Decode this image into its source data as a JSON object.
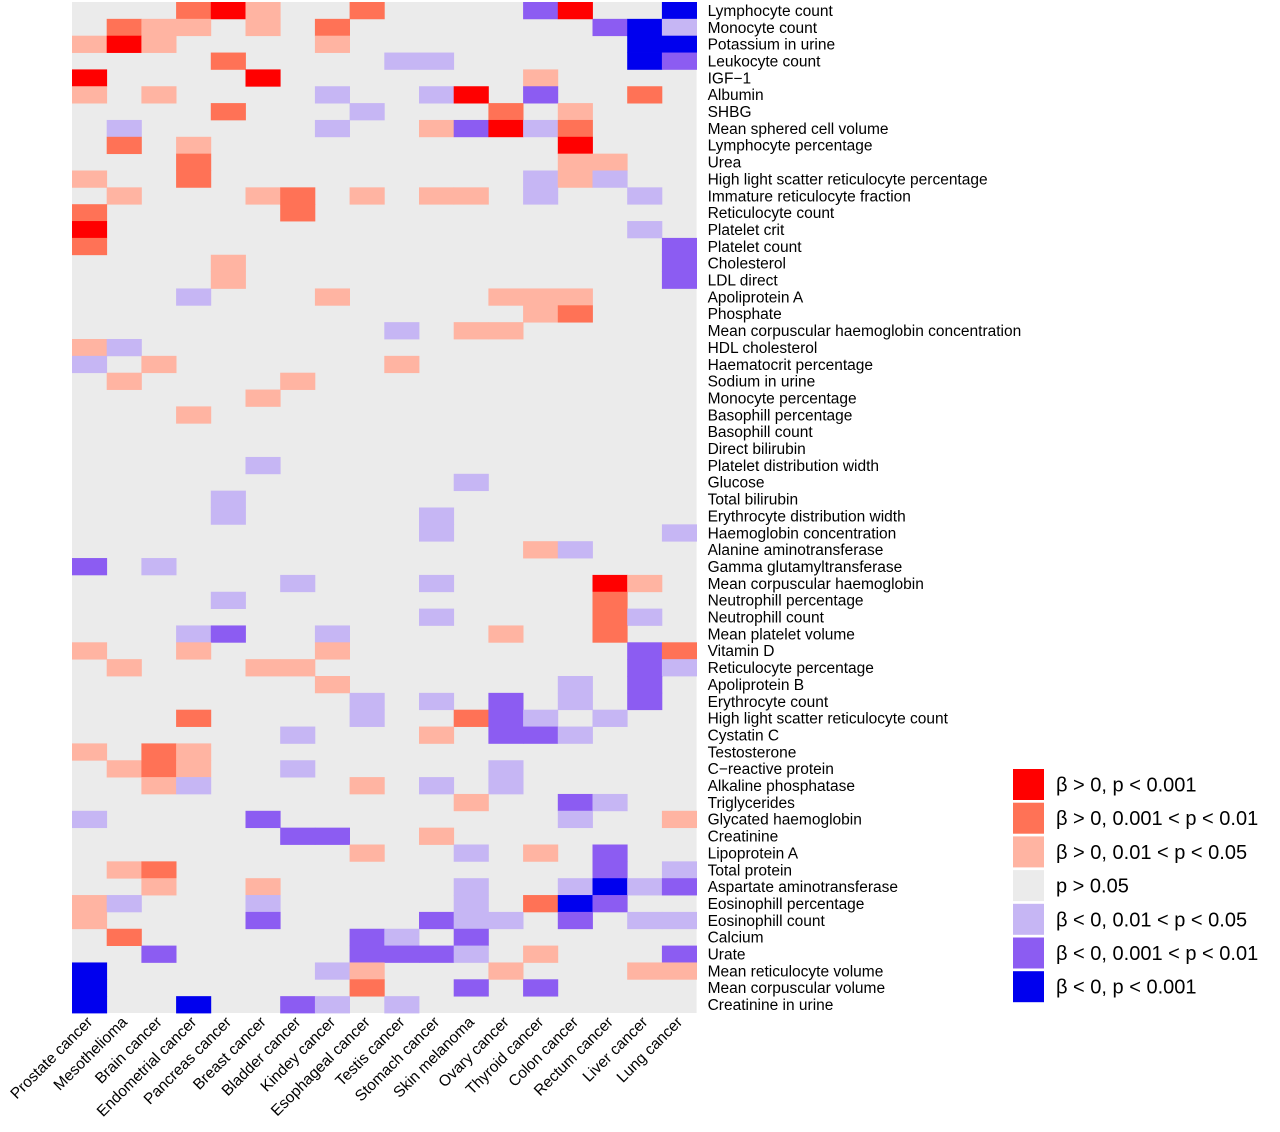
{
  "chart_data": {
    "type": "heatmap",
    "title": "",
    "xlabel": "",
    "ylabel": "",
    "columns": [
      "Prostate cancer",
      "Mesothelioma",
      "Brain cancer",
      "Endometrial cancer",
      "Pancreas cancer",
      "Breast cancer",
      "Bladder cancer",
      "Kindey cancer",
      "Esophageal cancer",
      "Testis cancer",
      "Stomach cancer",
      "Skin melanoma",
      "Ovary cancer",
      "Thyroid cancer",
      "Colon cancer",
      "Rectum cancer",
      "Liver cancer",
      "Lung cancer"
    ],
    "rows": [
      "Lymphocyte count",
      "Monocyte count",
      "Potassium in urine",
      "Leukocyte count",
      "IGF−1",
      "Albumin",
      "SHBG",
      "Mean sphered cell volume",
      "Lymphocyte percentage",
      "Urea",
      "High light scatter reticulocyte percentage",
      "Immature reticulocyte fraction",
      "Reticulocyte count",
      "Platelet crit",
      "Platelet count",
      "Cholesterol",
      "LDL direct",
      "Apoliprotein A",
      "Phosphate",
      "Mean corpuscular haemoglobin concentration",
      "HDL cholesterol",
      "Haematocrit percentage",
      "Sodium in urine",
      "Monocyte percentage",
      "Basophill percentage",
      "Basophill count",
      "Direct bilirubin",
      "Platelet distribution width",
      "Glucose",
      "Total bilirubin",
      "Erythrocyte distribution width",
      "Haemoglobin concentration",
      "Alanine aminotransferase",
      "Gamma glutamyltransferase",
      "Mean corpuscular haemoglobin",
      "Neutrophill percentage",
      "Neutrophill count",
      "Mean platelet volume",
      "Vitamin D",
      "Reticulocyte percentage",
      "Apoliprotein B",
      "Erythrocyte count",
      "High light scatter reticulocyte count",
      "Cystatin C",
      "Testosterone",
      "C−reactive protein",
      "Alkaline phosphatase",
      "Triglycerides",
      "Glycated haemoglobin",
      "Creatinine",
      "Lipoprotein A",
      "Total protein",
      "Aspartate aminotransferase",
      "Eosinophill percentage",
      "Eosinophill count",
      "Calcium",
      "Urate",
      "Mean reticulocyte volume",
      "Mean corpuscular volume",
      "Creatinine in urine"
    ],
    "categories": [
      {
        "code": 3,
        "label": "β > 0, p < 0.001",
        "color": "#ff0000"
      },
      {
        "code": 2,
        "label": "β > 0, 0.001 < p < 0.01",
        "color": "#ff7256"
      },
      {
        "code": 1,
        "label": "β > 0, 0.01 < p < 0.05",
        "color": "#ffb4a2"
      },
      {
        "code": 0,
        "label": "p > 0.05",
        "color": "#ebebeb"
      },
      {
        "code": -1,
        "label": "β < 0, 0.01 < p < 0.05",
        "color": "#c6b6f4"
      },
      {
        "code": -2,
        "label": "β < 0, 0.001 < p < 0.01",
        "color": "#8c5cf2"
      },
      {
        "code": -3,
        "label": "β < 0, p < 0.001",
        "color": "#0000ee"
      }
    ],
    "values": [
      [
        0,
        0,
        0,
        2,
        3,
        1,
        0,
        0,
        2,
        0,
        0,
        0,
        0,
        -2,
        3,
        0,
        0,
        -3
      ],
      [
        0,
        2,
        1,
        1,
        0,
        1,
        0,
        2,
        0,
        0,
        0,
        0,
        0,
        0,
        0,
        -2,
        -3,
        -1
      ],
      [
        1,
        3,
        1,
        0,
        0,
        0,
        0,
        1,
        0,
        0,
        0,
        0,
        0,
        0,
        0,
        0,
        -3,
        -3
      ],
      [
        0,
        0,
        0,
        0,
        2,
        0,
        0,
        0,
        0,
        -1,
        -1,
        0,
        0,
        0,
        0,
        0,
        -3,
        -2
      ],
      [
        3,
        0,
        0,
        0,
        0,
        3,
        0,
        0,
        0,
        0,
        0,
        0,
        0,
        1,
        0,
        0,
        0,
        0
      ],
      [
        1,
        0,
        1,
        0,
        0,
        0,
        0,
        -1,
        0,
        0,
        -1,
        3,
        0,
        -2,
        0,
        0,
        2,
        0
      ],
      [
        0,
        0,
        0,
        0,
        2,
        0,
        0,
        0,
        -1,
        0,
        0,
        0,
        2,
        0,
        1,
        0,
        0,
        0
      ],
      [
        0,
        -1,
        0,
        0,
        0,
        0,
        0,
        -1,
        0,
        0,
        1,
        -2,
        3,
        -1,
        2,
        0,
        0,
        0
      ],
      [
        0,
        2,
        0,
        1,
        0,
        0,
        0,
        0,
        0,
        0,
        0,
        0,
        0,
        0,
        3,
        0,
        0,
        0
      ],
      [
        0,
        0,
        0,
        2,
        0,
        0,
        0,
        0,
        0,
        0,
        0,
        0,
        0,
        0,
        1,
        1,
        0,
        0
      ],
      [
        1,
        0,
        0,
        2,
        0,
        0,
        0,
        0,
        0,
        0,
        0,
        0,
        0,
        -1,
        1,
        -1,
        0,
        0
      ],
      [
        0,
        1,
        0,
        0,
        0,
        1,
        2,
        0,
        1,
        0,
        1,
        1,
        0,
        -1,
        0,
        0,
        -1,
        0
      ],
      [
        2,
        0,
        0,
        0,
        0,
        0,
        2,
        0,
        0,
        0,
        0,
        0,
        0,
        0,
        0,
        0,
        0,
        0
      ],
      [
        3,
        0,
        0,
        0,
        0,
        0,
        0,
        0,
        0,
        0,
        0,
        0,
        0,
        0,
        0,
        0,
        -1,
        0
      ],
      [
        2,
        0,
        0,
        0,
        0,
        0,
        0,
        0,
        0,
        0,
        0,
        0,
        0,
        0,
        0,
        0,
        0,
        -2
      ],
      [
        0,
        0,
        0,
        0,
        1,
        0,
        0,
        0,
        0,
        0,
        0,
        0,
        0,
        0,
        0,
        0,
        0,
        -2
      ],
      [
        0,
        0,
        0,
        0,
        1,
        0,
        0,
        0,
        0,
        0,
        0,
        0,
        0,
        0,
        0,
        0,
        0,
        -2
      ],
      [
        0,
        0,
        0,
        -1,
        0,
        0,
        0,
        1,
        0,
        0,
        0,
        0,
        1,
        1,
        1,
        0,
        0,
        0
      ],
      [
        0,
        0,
        0,
        0,
        0,
        0,
        0,
        0,
        0,
        0,
        0,
        0,
        0,
        1,
        2,
        0,
        0,
        0
      ],
      [
        0,
        0,
        0,
        0,
        0,
        0,
        0,
        0,
        0,
        -1,
        0,
        1,
        1,
        0,
        0,
        0,
        0,
        0
      ],
      [
        1,
        -1,
        0,
        0,
        0,
        0,
        0,
        0,
        0,
        0,
        0,
        0,
        0,
        0,
        0,
        0,
        0,
        0
      ],
      [
        -1,
        0,
        1,
        0,
        0,
        0,
        0,
        0,
        0,
        1,
        0,
        0,
        0,
        0,
        0,
        0,
        0,
        0
      ],
      [
        0,
        1,
        0,
        0,
        0,
        0,
        1,
        0,
        0,
        0,
        0,
        0,
        0,
        0,
        0,
        0,
        0,
        0
      ],
      [
        0,
        0,
        0,
        0,
        0,
        1,
        0,
        0,
        0,
        0,
        0,
        0,
        0,
        0,
        0,
        0,
        0,
        0
      ],
      [
        0,
        0,
        0,
        1,
        0,
        0,
        0,
        0,
        0,
        0,
        0,
        0,
        0,
        0,
        0,
        0,
        0,
        0
      ],
      [
        0,
        0,
        0,
        0,
        0,
        0,
        0,
        0,
        0,
        0,
        0,
        0,
        0,
        0,
        0,
        0,
        0,
        0
      ],
      [
        0,
        0,
        0,
        0,
        0,
        0,
        0,
        0,
        0,
        0,
        0,
        0,
        0,
        0,
        0,
        0,
        0,
        0
      ],
      [
        0,
        0,
        0,
        0,
        0,
        -1,
        0,
        0,
        0,
        0,
        0,
        0,
        0,
        0,
        0,
        0,
        0,
        0
      ],
      [
        0,
        0,
        0,
        0,
        0,
        0,
        0,
        0,
        0,
        0,
        0,
        -1,
        0,
        0,
        0,
        0,
        0,
        0
      ],
      [
        0,
        0,
        0,
        0,
        -1,
        0,
        0,
        0,
        0,
        0,
        0,
        0,
        0,
        0,
        0,
        0,
        0,
        0
      ],
      [
        0,
        0,
        0,
        0,
        -1,
        0,
        0,
        0,
        0,
        0,
        -1,
        0,
        0,
        0,
        0,
        0,
        0,
        0
      ],
      [
        0,
        0,
        0,
        0,
        0,
        0,
        0,
        0,
        0,
        0,
        -1,
        0,
        0,
        0,
        0,
        0,
        0,
        -1
      ],
      [
        0,
        0,
        0,
        0,
        0,
        0,
        0,
        0,
        0,
        0,
        0,
        0,
        0,
        1,
        -1,
        0,
        0,
        0
      ],
      [
        -2,
        0,
        -1,
        0,
        0,
        0,
        0,
        0,
        0,
        0,
        0,
        0,
        0,
        0,
        0,
        0,
        0,
        0
      ],
      [
        0,
        0,
        0,
        0,
        0,
        0,
        -1,
        0,
        0,
        0,
        -1,
        0,
        0,
        0,
        0,
        3,
        1,
        0
      ],
      [
        0,
        0,
        0,
        0,
        -1,
        0,
        0,
        0,
        0,
        0,
        0,
        0,
        0,
        0,
        0,
        2,
        0,
        0
      ],
      [
        0,
        0,
        0,
        0,
        0,
        0,
        0,
        0,
        0,
        0,
        -1,
        0,
        0,
        0,
        0,
        2,
        -1,
        0
      ],
      [
        0,
        0,
        0,
        -1,
        -2,
        0,
        0,
        -1,
        0,
        0,
        0,
        0,
        1,
        0,
        0,
        2,
        0,
        0
      ],
      [
        1,
        0,
        0,
        1,
        0,
        0,
        0,
        1,
        0,
        0,
        0,
        0,
        0,
        0,
        0,
        0,
        -2,
        2
      ],
      [
        0,
        1,
        0,
        0,
        0,
        1,
        1,
        0,
        0,
        0,
        0,
        0,
        0,
        0,
        0,
        0,
        -2,
        -1
      ],
      [
        0,
        0,
        0,
        0,
        0,
        0,
        0,
        1,
        0,
        0,
        0,
        0,
        0,
        0,
        -1,
        0,
        -2,
        0
      ],
      [
        0,
        0,
        0,
        0,
        0,
        0,
        0,
        0,
        -1,
        0,
        -1,
        0,
        -2,
        0,
        -1,
        0,
        -2,
        0
      ],
      [
        0,
        0,
        0,
        2,
        0,
        0,
        0,
        0,
        -1,
        0,
        0,
        2,
        -2,
        -1,
        0,
        -1,
        0,
        0
      ],
      [
        0,
        0,
        0,
        0,
        0,
        0,
        -1,
        0,
        0,
        0,
        1,
        0,
        -2,
        -2,
        -1,
        0,
        0,
        0
      ],
      [
        1,
        0,
        2,
        1,
        0,
        0,
        0,
        0,
        0,
        0,
        0,
        0,
        0,
        0,
        0,
        0,
        0,
        0
      ],
      [
        0,
        1,
        2,
        1,
        0,
        0,
        -1,
        0,
        0,
        0,
        0,
        0,
        -1,
        0,
        0,
        0,
        0,
        0
      ],
      [
        0,
        0,
        1,
        -1,
        0,
        0,
        0,
        0,
        1,
        0,
        -1,
        0,
        -1,
        0,
        0,
        0,
        0,
        0
      ],
      [
        0,
        0,
        0,
        0,
        0,
        0,
        0,
        0,
        0,
        0,
        0,
        1,
        0,
        0,
        -2,
        -1,
        0,
        0
      ],
      [
        -1,
        0,
        0,
        0,
        0,
        -2,
        0,
        0,
        0,
        0,
        0,
        0,
        0,
        0,
        -1,
        0,
        0,
        1
      ],
      [
        0,
        0,
        0,
        0,
        0,
        0,
        -2,
        -2,
        0,
        0,
        1,
        0,
        0,
        0,
        0,
        0,
        0,
        0
      ],
      [
        0,
        0,
        0,
        0,
        0,
        0,
        0,
        0,
        1,
        0,
        0,
        -1,
        0,
        1,
        0,
        -2,
        0,
        0
      ],
      [
        0,
        1,
        2,
        0,
        0,
        0,
        0,
        0,
        0,
        0,
        0,
        0,
        0,
        0,
        0,
        -2,
        0,
        -1
      ],
      [
        0,
        0,
        1,
        0,
        0,
        1,
        0,
        0,
        0,
        0,
        0,
        -1,
        0,
        0,
        -1,
        -3,
        -1,
        -2
      ],
      [
        1,
        -1,
        0,
        0,
        0,
        -1,
        0,
        0,
        0,
        0,
        0,
        -1,
        0,
        2,
        -3,
        -2,
        0,
        0
      ],
      [
        1,
        0,
        0,
        0,
        0,
        -2,
        0,
        0,
        0,
        0,
        -2,
        -1,
        -1,
        0,
        -2,
        0,
        -1,
        -1
      ],
      [
        0,
        2,
        0,
        0,
        0,
        0,
        0,
        0,
        -2,
        -1,
        0,
        -2,
        0,
        0,
        0,
        0,
        0,
        0
      ],
      [
        0,
        0,
        -2,
        0,
        0,
        0,
        0,
        0,
        -2,
        -2,
        -2,
        -1,
        0,
        1,
        0,
        0,
        0,
        -2
      ],
      [
        -3,
        0,
        0,
        0,
        0,
        0,
        0,
        -1,
        1,
        0,
        0,
        0,
        1,
        0,
        0,
        0,
        1,
        1
      ],
      [
        -3,
        0,
        0,
        0,
        0,
        0,
        0,
        0,
        2,
        0,
        0,
        -2,
        0,
        -2,
        0,
        0,
        0,
        0
      ],
      [
        -3,
        0,
        0,
        -3,
        0,
        0,
        -2,
        -1,
        0,
        -1,
        0,
        0,
        0,
        0,
        0,
        0,
        0,
        0
      ]
    ],
    "legend_position": "bottom-right"
  }
}
